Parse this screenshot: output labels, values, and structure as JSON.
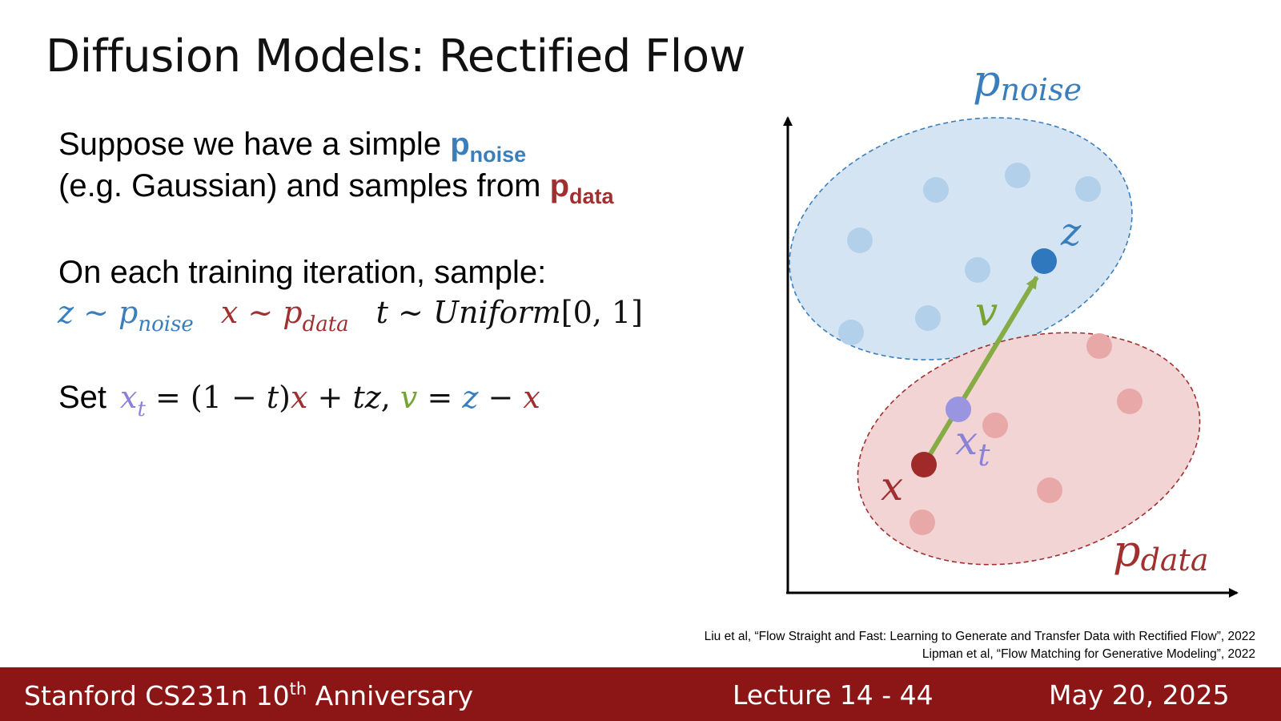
{
  "slide": {
    "title": "Diffusion Models: Rectified Flow"
  },
  "body": {
    "line1_text": "Suppose we have a simple ",
    "line1_p": "p",
    "line1_sub": "noise",
    "line2_text": "(e.g. Gaussian) and samples from ",
    "line2_p": "p",
    "line2_sub": "data",
    "line3_text": "On each training iteration, sample:",
    "line5_text": "Set "
  },
  "formulas": {
    "z": "z",
    "tilde": " ~ ",
    "p": "p",
    "noise": "noise",
    "x": "x",
    "data": "data",
    "t": "t",
    "uniform": "Uniform",
    "interval": "[0, 1]",
    "xt_x": "x",
    "xt_t": "t",
    "eq": " = ",
    "paren": "(1 − ",
    "close": ")",
    "plus": " + ",
    "tz": "tz",
    "comma": ", ",
    "v": "v",
    "minus": " − "
  },
  "diagram": {
    "noise_label": "p",
    "noise_sub": "noise",
    "data_label": "p",
    "data_sub": "data",
    "z_label": "z",
    "v_label": "v",
    "xt_label": "x",
    "xt_sub": "t",
    "x_label": "x",
    "colors": {
      "noise_fill": "#d5e4f2",
      "noise_stroke": "#3a7fbd",
      "noise_dot": "#b3d0ea",
      "noise_dot_main": "#2f78bd",
      "data_fill": "#f3d4d4",
      "data_stroke": "#a03030",
      "data_dot": "#e8a8a8",
      "data_dot_main": "#a02a2a",
      "arrow": "#86ad45",
      "xt_dot": "#9a95e0"
    }
  },
  "citations": {
    "c1": "Liu et al, “Flow Straight and Fast: Learning to Generate and Transfer Data with Rectified Flow”, 2022",
    "c2": "Lipman et al, “Flow Matching for Generative Modeling”, 2022"
  },
  "footer": {
    "course_prefix": "Stanford CS231n 10",
    "course_sup": "th",
    "course_suffix": " Anniversary",
    "lecture": "Lecture 14 -  44",
    "date": "May 20, 2025",
    "bg_color": "#8c1515"
  }
}
